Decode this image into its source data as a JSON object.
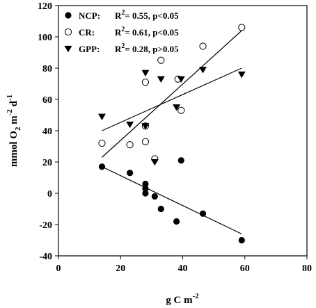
{
  "chart_data": {
    "type": "scatter",
    "xlabel": "g C m",
    "xlabel_sup": "-2",
    "ylabel_parts": [
      {
        "text": "mmol O",
        "sub": "",
        "sup": ""
      },
      {
        "text": "",
        "sub": "2",
        "sup": ""
      },
      {
        "text": " m",
        "sub": "",
        "sup": ""
      },
      {
        "text": "",
        "sub": "",
        "sup": "-2"
      },
      {
        "text": " d",
        "sub": "",
        "sup": ""
      },
      {
        "text": "",
        "sub": "",
        "sup": "-1"
      }
    ],
    "xlim": [
      0,
      80
    ],
    "ylim": [
      -40,
      120
    ],
    "x_ticks": [
      "0",
      "20",
      "40",
      "60",
      "80"
    ],
    "y_ticks": [
      "-40",
      "-20",
      "0",
      "20",
      "40",
      "60",
      "80",
      "100",
      "120"
    ],
    "grid": false,
    "legend_position": "top-left",
    "series": [
      {
        "name": "NCP:",
        "stat_r2": "0.55, p<0.05",
        "marker": "filled-circle",
        "x": [
          14,
          23,
          28,
          28,
          28,
          31,
          33,
          38,
          39.5,
          46.5,
          59
        ],
        "y": [
          17,
          13,
          6,
          3,
          0,
          -2,
          -10,
          -18,
          21,
          -13,
          -30
        ],
        "fit": {
          "x": [
            14,
            59
          ],
          "y": [
            17,
            -26
          ]
        }
      },
      {
        "name": "CR:",
        "stat_r2": "0.61, p<0.05",
        "marker": "open-circle",
        "x": [
          14,
          23,
          28,
          28,
          28,
          31,
          33,
          38.5,
          39.5,
          46.5,
          59
        ],
        "y": [
          32,
          31,
          71,
          33,
          43,
          22,
          85,
          73,
          53,
          94,
          106
        ],
        "fit": {
          "x": [
            14,
            59
          ],
          "y": [
            23,
            104
          ]
        }
      },
      {
        "name": "GPP:",
        "stat_r2": "0.28, p>0.05",
        "marker": "filled-triangle-down",
        "x": [
          14,
          23,
          28,
          28,
          31,
          33,
          38,
          39.5,
          46.5,
          59
        ],
        "y": [
          49,
          44,
          77,
          43,
          20,
          73,
          55,
          73,
          79,
          76
        ],
        "fit": {
          "x": [
            14,
            59
          ],
          "y": [
            40,
            80
          ]
        }
      }
    ],
    "r2_prefix": "R",
    "r2_sup": "2",
    "r2_eq": "= "
  },
  "colors": {
    "ink": "#000000",
    "background": "#ffffff"
  }
}
